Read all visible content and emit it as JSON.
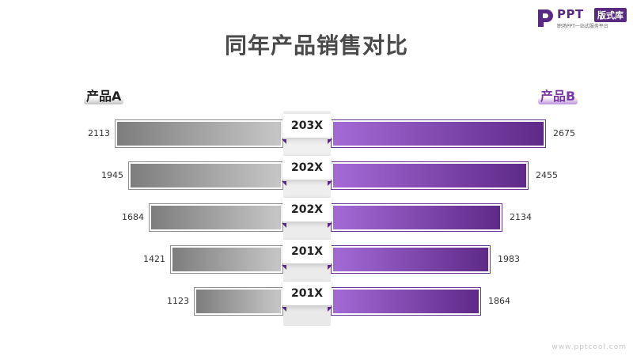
{
  "logo": {
    "text": "PPT",
    "badge": "版式库",
    "sub": "职场PPT一站式服务平台"
  },
  "footer": {
    "watermark": "www.pptcool.com"
  },
  "colors": {
    "accent": "#5e2a88",
    "grey": "#9a9a9a"
  },
  "chart_data": {
    "type": "bar",
    "title": "同年产品销售对比",
    "categories": [
      "203X",
      "202X",
      "202X",
      "201X",
      "201X"
    ],
    "series": [
      {
        "name": "产品A",
        "values": [
          2113,
          1945,
          1684,
          1421,
          1123
        ]
      },
      {
        "name": "产品B",
        "values": [
          2675,
          2455,
          2134,
          1983,
          1864
        ]
      }
    ],
    "legend": "top-left and top-right",
    "grid": false
  }
}
